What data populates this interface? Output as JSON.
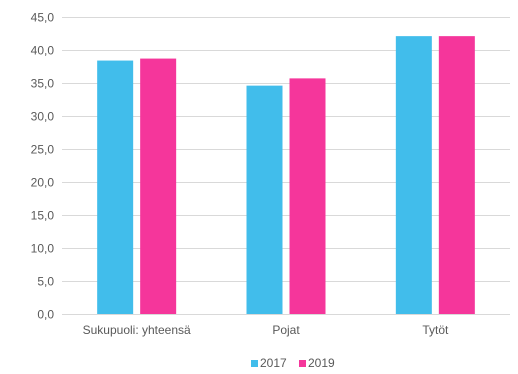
{
  "chart_data": {
    "type": "bar",
    "title": "",
    "xlabel": "",
    "ylabel": "",
    "categories": [
      "Sukupuoli: yhteensä",
      "Pojat",
      "Tytöt"
    ],
    "series": [
      {
        "name": "2017",
        "values": [
          38.4,
          34.6,
          42.1
        ],
        "color": "#41BDEB"
      },
      {
        "name": "2019",
        "values": [
          38.7,
          35.7,
          42.1
        ],
        "color": "#F5369B"
      }
    ],
    "ylim": [
      0,
      45
    ],
    "y_ticks": [
      0,
      5,
      10,
      15,
      20,
      25,
      30,
      35,
      40,
      45
    ],
    "y_tick_labels": [
      "0,0",
      "5,0",
      "10,0",
      "15,0",
      "20,0",
      "25,0",
      "30,0",
      "35,0",
      "40,0",
      "45,0"
    ],
    "grid": true,
    "grid_color": "#D9D9D9",
    "legend_position": "bottom"
  }
}
